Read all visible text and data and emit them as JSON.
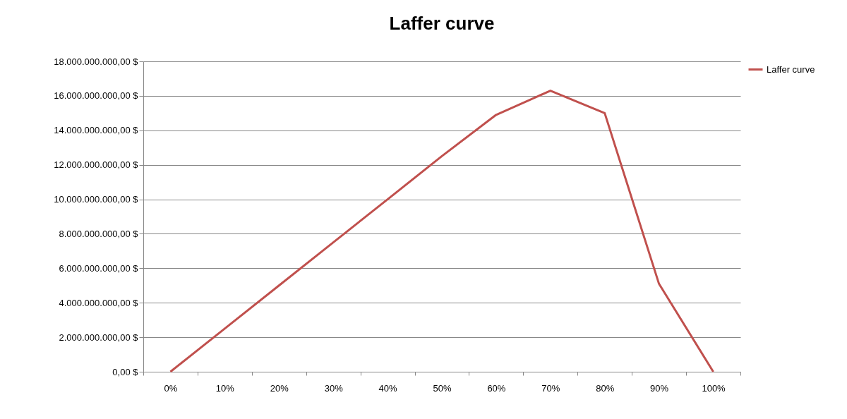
{
  "chart_data": {
    "type": "line",
    "title": "Laffer curve",
    "categories": [
      "0%",
      "10%",
      "20%",
      "30%",
      "40%",
      "50%",
      "60%",
      "70%",
      "80%",
      "90%",
      "100%"
    ],
    "series": [
      {
        "name": "Laffer curve",
        "color": "#c0504d",
        "values": [
          0,
          2500000000,
          5000000000,
          7500000000,
          10000000000,
          12500000000,
          14900000000,
          16300000000,
          15000000000,
          5100000000,
          0
        ]
      }
    ],
    "ylim": [
      0,
      18000000000
    ],
    "yticks": [
      {
        "value": 0,
        "label": "0,00 $"
      },
      {
        "value": 2000000000,
        "label": "2.000.000.000,00 $"
      },
      {
        "value": 4000000000,
        "label": "4.000.000.000,00 $"
      },
      {
        "value": 6000000000,
        "label": "6.000.000.000,00 $"
      },
      {
        "value": 8000000000,
        "label": "8.000.000.000,00 $"
      },
      {
        "value": 10000000000,
        "label": "10.000.000.000,00 $"
      },
      {
        "value": 12000000000,
        "label": "12.000.000.000,00 $"
      },
      {
        "value": 14000000000,
        "label": "14.000.000.000,00 $"
      },
      {
        "value": 16000000000,
        "label": "16.000.000.000,00 $"
      },
      {
        "value": 18000000000,
        "label": "18.000.000.000,00 $"
      }
    ],
    "grid": "y",
    "legend": "right",
    "marker": "none",
    "line_style": "solid"
  }
}
